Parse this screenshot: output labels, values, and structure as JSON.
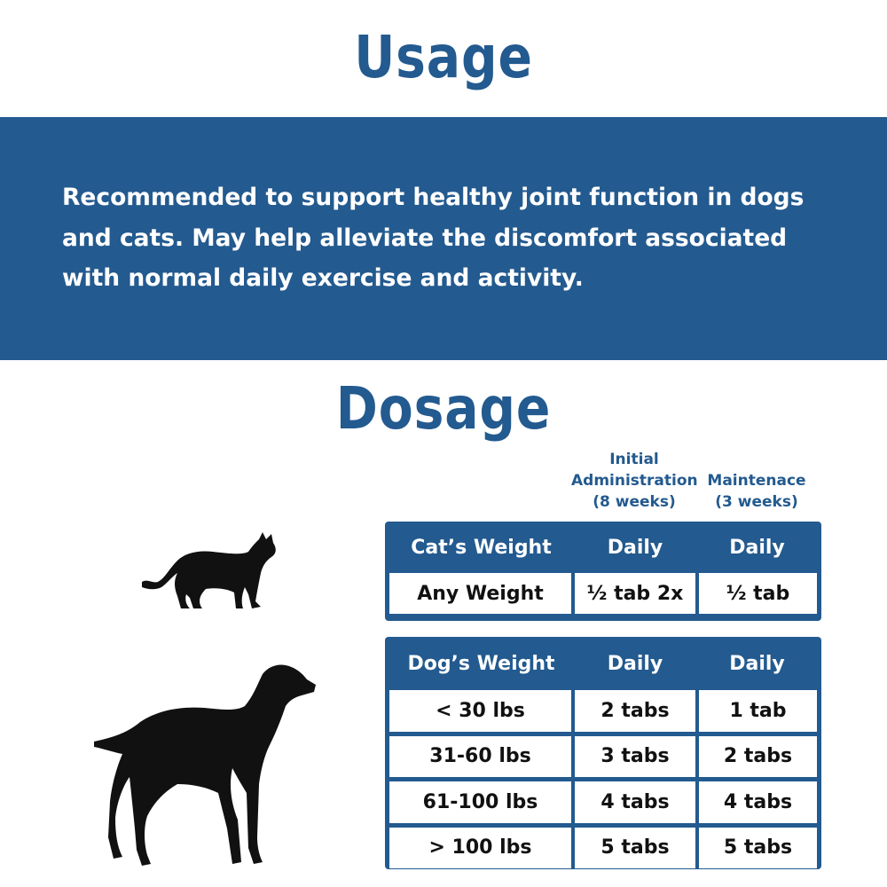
{
  "usage": {
    "title": "Usage",
    "text": "Recommended to support healthy joint function in dogs and cats. May help alleviate the discomfort associated with normal daily exercise and activity."
  },
  "dosage": {
    "title": "Dosage",
    "column_headers": {
      "initial": [
        "Initial",
        "Administration",
        "(8 weeks)"
      ],
      "maintenance": [
        "Maintenace",
        "(3 weeks)"
      ]
    },
    "cat_table": {
      "headers": [
        "Cat’s Weight",
        "Daily",
        "Daily"
      ],
      "rows": [
        [
          "Any Weight",
          "½ tab 2x",
          "½ tab"
        ]
      ]
    },
    "dog_table": {
      "headers": [
        "Dog’s Weight",
        "Daily",
        "Daily"
      ],
      "rows": [
        [
          "< 30 lbs",
          "2 tabs",
          "1 tab"
        ],
        [
          "31-60 lbs",
          "3 tabs",
          "2 tabs"
        ],
        [
          "61-100 lbs",
          "4 tabs",
          "4 tabs"
        ],
        [
          "> 100 lbs",
          "5 tabs",
          "5 tabs"
        ]
      ]
    }
  },
  "icons": {
    "cat": "cat-silhouette-icon",
    "dog": "dog-silhouette-icon"
  },
  "colors": {
    "brand_blue": "#235a8f",
    "text_on_blue": "#ffffff",
    "table_text": "#111111"
  }
}
